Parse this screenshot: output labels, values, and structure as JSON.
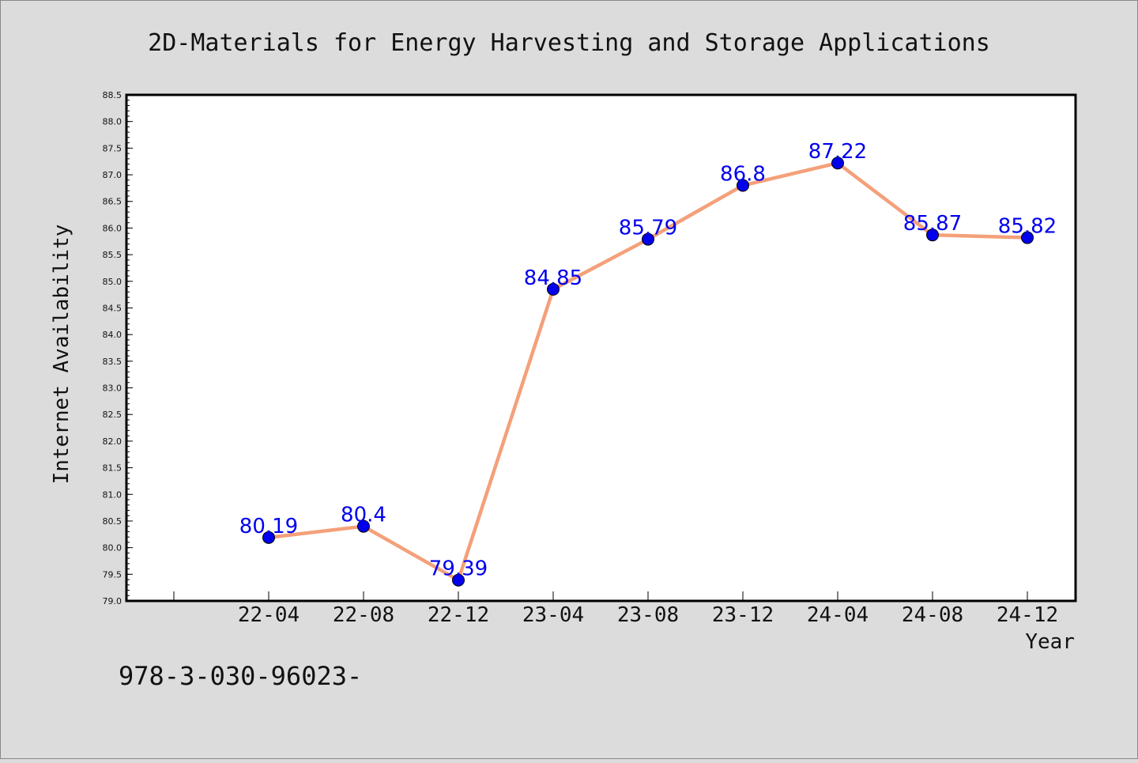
{
  "chart_data": {
    "type": "line",
    "title": "2D-Materials for Energy Harvesting and Storage Applications",
    "xlabel": "Year",
    "ylabel": "Internet Availability",
    "categories": [
      "22-04",
      "22-08",
      "22-12",
      "23-04",
      "23-08",
      "23-12",
      "24-04",
      "24-08",
      "24-12"
    ],
    "series": [
      {
        "values": [
          80.19,
          80.4,
          79.39,
          84.85,
          85.79,
          86.8,
          87.22,
          85.87,
          85.82
        ],
        "labels": [
          "80.19",
          "80.4",
          "79.39",
          "84.85",
          "85.79",
          "86.8",
          "87.22",
          "85.87",
          "85.82"
        ],
        "line_color": "#f4a07a",
        "marker_color": "#0000ee"
      }
    ],
    "ylim": [
      79.0,
      88.5
    ],
    "yticks": [
      "79.0",
      "79.5",
      "80.0",
      "80.5",
      "81.0",
      "81.5",
      "82.0",
      "82.5",
      "83.0",
      "83.5",
      "84.0",
      "84.5",
      "85.0",
      "85.5",
      "86.0",
      "86.5",
      "87.0",
      "87.5",
      "88.0",
      "88.5"
    ],
    "grid": false,
    "background": "#dcdcdc",
    "plot_background": "#ffffff"
  },
  "footer_text": "978-3-030-96023-"
}
